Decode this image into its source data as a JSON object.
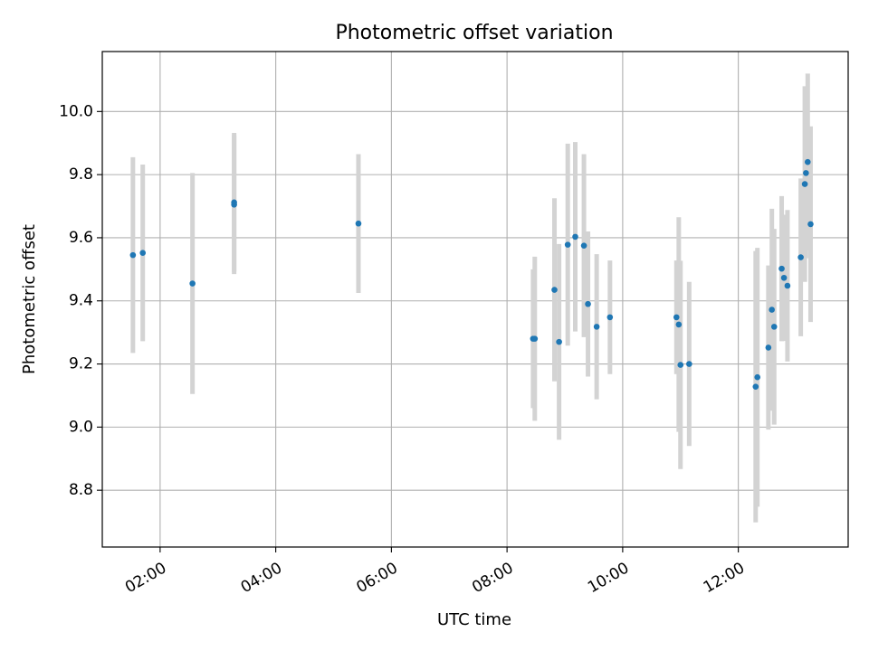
{
  "chart_data": {
    "type": "scatter",
    "title": "Photometric offset variation",
    "xlabel": "UTC time",
    "ylabel": "Photometric offset",
    "x_unit": "hours UTC",
    "xlim": [
      1.0,
      13.9
    ],
    "ylim": [
      8.62,
      10.19
    ],
    "x_ticks": [
      2,
      4,
      6,
      8,
      10,
      12
    ],
    "x_tick_labels": [
      "02:00",
      "04:00",
      "06:00",
      "08:00",
      "10:00",
      "12:00"
    ],
    "y_ticks": [
      8.8,
      9.0,
      9.2,
      9.4,
      9.6,
      9.8,
      10.0
    ],
    "y_tick_labels": [
      "8.8",
      "9.0",
      "9.2",
      "9.4",
      "9.6",
      "9.8",
      "10.0"
    ],
    "grid": true,
    "marker_color": "#1f77b4",
    "errorbar_color": "#d3d3d3",
    "points": [
      {
        "x": 1.53,
        "y": 9.545,
        "err": 0.31
      },
      {
        "x": 1.7,
        "y": 9.552,
        "err": 0.28
      },
      {
        "x": 2.56,
        "y": 9.455,
        "err": 0.35
      },
      {
        "x": 3.28,
        "y": 9.705,
        "err": 0.22
      },
      {
        "x": 3.28,
        "y": 9.712,
        "err": 0.22
      },
      {
        "x": 5.43,
        "y": 9.645,
        "err": 0.22
      },
      {
        "x": 8.45,
        "y": 9.28,
        "err": 0.22
      },
      {
        "x": 8.48,
        "y": 9.28,
        "err": 0.26
      },
      {
        "x": 8.82,
        "y": 9.435,
        "err": 0.29
      },
      {
        "x": 8.9,
        "y": 9.27,
        "err": 0.31
      },
      {
        "x": 9.05,
        "y": 9.578,
        "err": 0.32
      },
      {
        "x": 9.18,
        "y": 9.603,
        "err": 0.3
      },
      {
        "x": 9.33,
        "y": 9.575,
        "err": 0.29
      },
      {
        "x": 9.4,
        "y": 9.39,
        "err": 0.23
      },
      {
        "x": 9.55,
        "y": 9.318,
        "err": 0.23
      },
      {
        "x": 9.78,
        "y": 9.348,
        "err": 0.18
      },
      {
        "x": 10.93,
        "y": 9.348,
        "err": 0.18
      },
      {
        "x": 10.97,
        "y": 9.325,
        "err": 0.34
      },
      {
        "x": 11.0,
        "y": 9.197,
        "err": 0.33
      },
      {
        "x": 11.15,
        "y": 9.2,
        "err": 0.26
      },
      {
        "x": 12.3,
        "y": 9.128,
        "err": 0.43
      },
      {
        "x": 12.33,
        "y": 9.158,
        "err": 0.41
      },
      {
        "x": 12.52,
        "y": 9.252,
        "err": 0.26
      },
      {
        "x": 12.58,
        "y": 9.372,
        "err": 0.32
      },
      {
        "x": 12.62,
        "y": 9.318,
        "err": 0.31
      },
      {
        "x": 12.75,
        "y": 9.502,
        "err": 0.23
      },
      {
        "x": 12.79,
        "y": 9.473,
        "err": 0.2
      },
      {
        "x": 12.85,
        "y": 9.448,
        "err": 0.24
      },
      {
        "x": 13.08,
        "y": 9.538,
        "err": 0.25
      },
      {
        "x": 13.15,
        "y": 9.77,
        "err": 0.31
      },
      {
        "x": 13.17,
        "y": 9.805,
        "err": 0.27
      },
      {
        "x": 13.2,
        "y": 9.84,
        "err": 0.28
      },
      {
        "x": 13.25,
        "y": 9.643,
        "err": 0.31
      }
    ]
  }
}
